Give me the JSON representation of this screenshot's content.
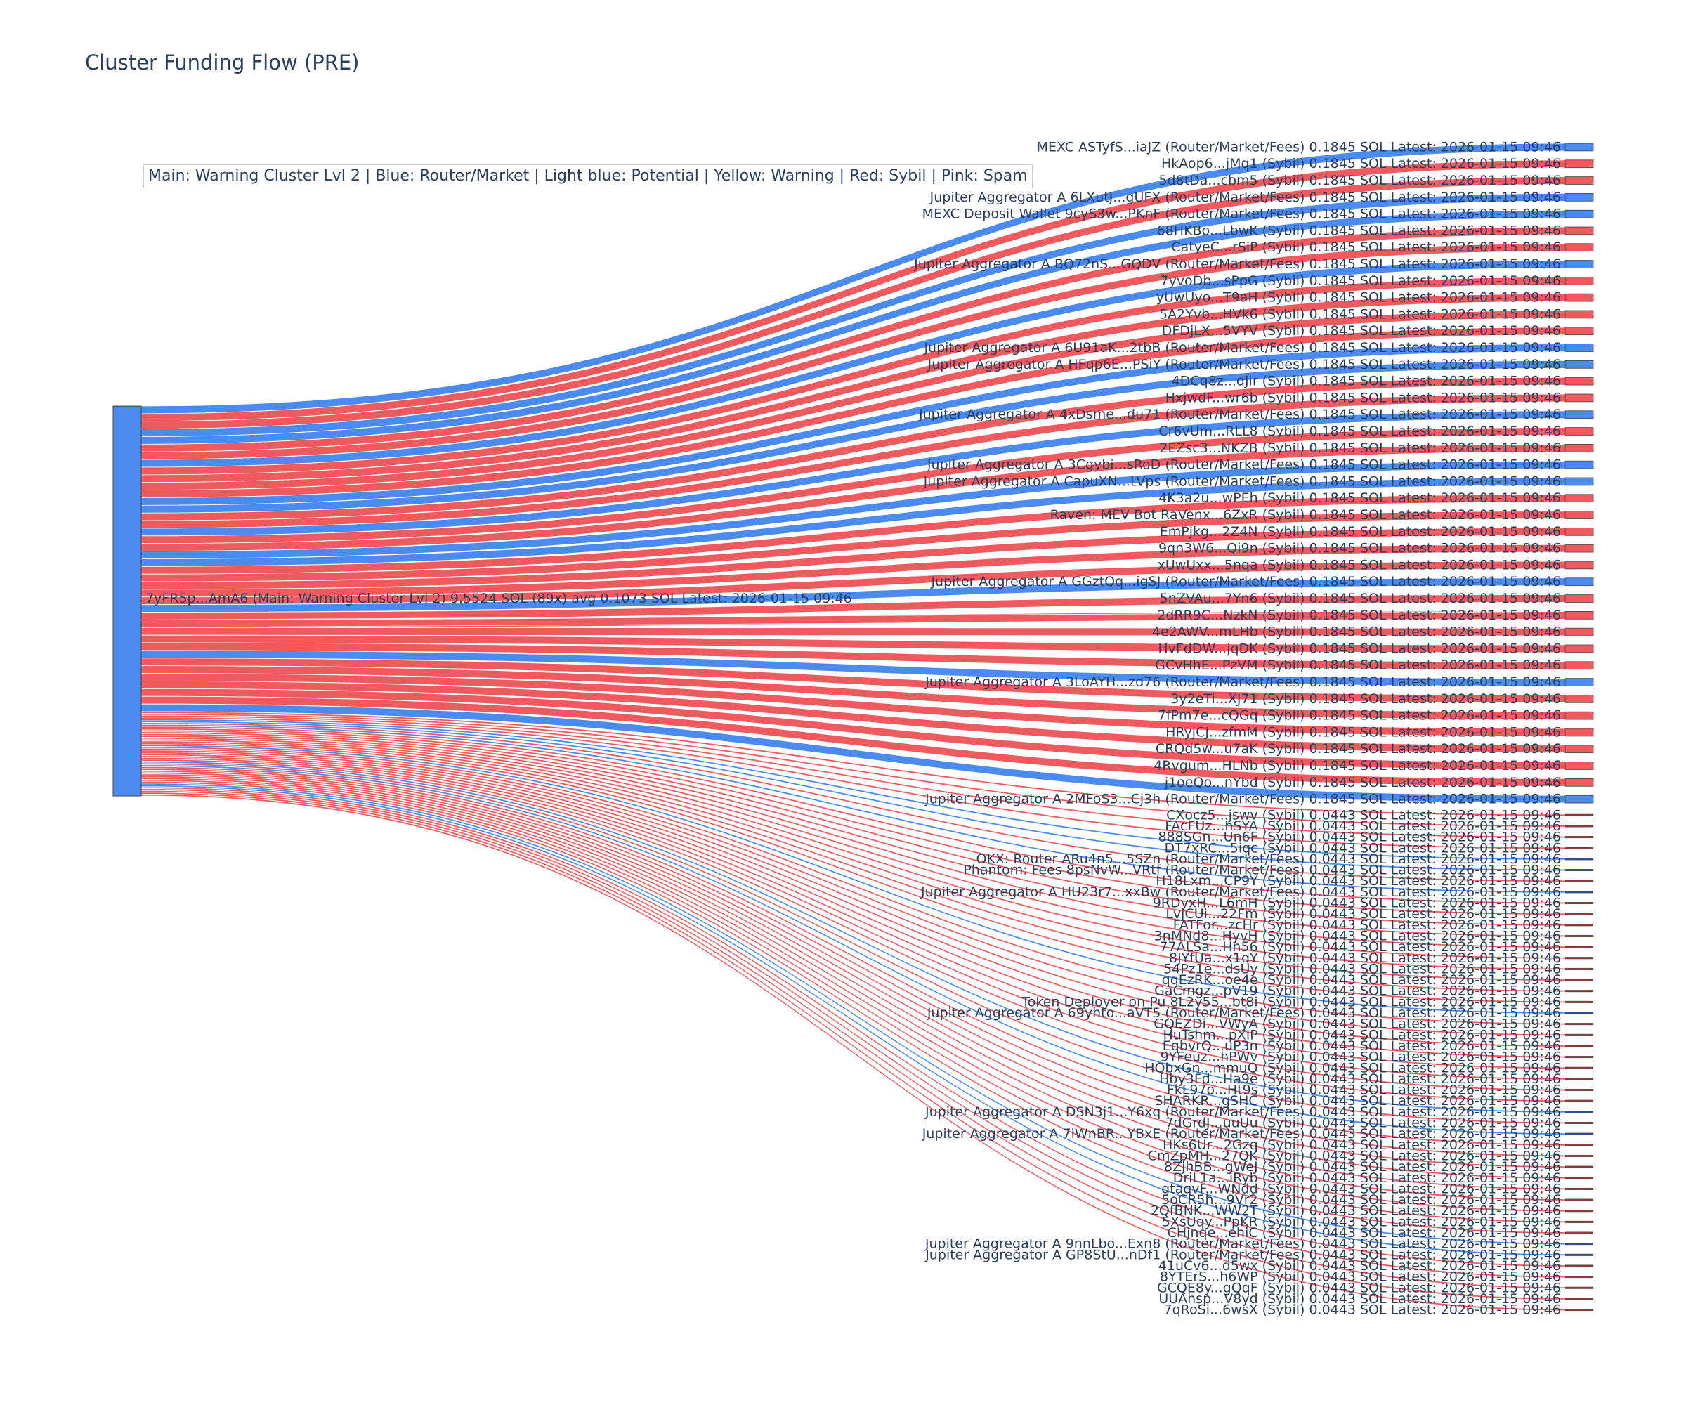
{
  "title": "Cluster Funding Flow (PRE)",
  "legend_text": "Main: Warning Cluster Lvl 2  |  Blue: Router/Market | Light blue: Potential | Yellow: Warning | Red: Sybil | Pink: Spam",
  "colors": {
    "router": "#4b8bf0",
    "sybil": "#ef5a5f",
    "source_node": "#4b8bf0",
    "small_sybil_node": "#8b3a3a",
    "small_router_node": "#2f4f8f"
  },
  "chart_data": {
    "type": "sankey",
    "source": {
      "label": "7yFR5p...AmA6 (Main: Warning Cluster Lvl 2) 9.5524 SOL (89x) avg 0.1073 SOL Latest: 2026-01-15 09:46",
      "total": 9.5524,
      "count": 89
    },
    "targets": [
      {
        "label": "MEXC ASTyfS...iaJZ (Router/Market/Fees) 0.1845 SOL Latest: 2026-01-15 09:46",
        "kind": "router",
        "value": 0.1845
      },
      {
        "label": "HkAop6...jMq1 (Sybil) 0.1845 SOL Latest: 2026-01-15 09:46",
        "kind": "sybil",
        "value": 0.1845
      },
      {
        "label": "5d8tDa...cbm5 (Sybil) 0.1845 SOL Latest: 2026-01-15 09:46",
        "kind": "sybil",
        "value": 0.1845
      },
      {
        "label": "Jupiter Aggregator A 6LXutJ...gUFX (Router/Market/Fees) 0.1845 SOL Latest: 2026-01-15 09:46",
        "kind": "router",
        "value": 0.1845
      },
      {
        "label": "MEXC Deposit Wallet 9cyS3w...PKnF (Router/Market/Fees) 0.1845 SOL Latest: 2026-01-15 09:46",
        "kind": "router",
        "value": 0.1845
      },
      {
        "label": "68HKBo...LbwK (Sybil) 0.1845 SOL Latest: 2026-01-15 09:46",
        "kind": "sybil",
        "value": 0.1845
      },
      {
        "label": "CatyeC...rSiP (Sybil) 0.1845 SOL Latest: 2026-01-15 09:46",
        "kind": "sybil",
        "value": 0.1845
      },
      {
        "label": "Jupiter Aggregator A BQ72nS...GQDV (Router/Market/Fees) 0.1845 SOL Latest: 2026-01-15 09:46",
        "kind": "router",
        "value": 0.1845
      },
      {
        "label": "7yvoDb...sPpG (Sybil) 0.1845 SOL Latest: 2026-01-15 09:46",
        "kind": "sybil",
        "value": 0.1845
      },
      {
        "label": "yUwUyo...T9aH (Sybil) 0.1845 SOL Latest: 2026-01-15 09:46",
        "kind": "sybil",
        "value": 0.1845
      },
      {
        "label": "5A2Yvb...HVk6 (Sybil) 0.1845 SOL Latest: 2026-01-15 09:46",
        "kind": "sybil",
        "value": 0.1845
      },
      {
        "label": "DFDjLX...5VYV (Sybil) 0.1845 SOL Latest: 2026-01-15 09:46",
        "kind": "sybil",
        "value": 0.1845
      },
      {
        "label": "Jupiter Aggregator A 6U91aK...2tbB (Router/Market/Fees) 0.1845 SOL Latest: 2026-01-15 09:46",
        "kind": "router",
        "value": 0.1845
      },
      {
        "label": "Jupiter Aggregator A HFqp6E...PSiY (Router/Market/Fees) 0.1845 SOL Latest: 2026-01-15 09:46",
        "kind": "router",
        "value": 0.1845
      },
      {
        "label": "4DCq8z...dJir (Sybil) 0.1845 SOL Latest: 2026-01-15 09:46",
        "kind": "sybil",
        "value": 0.1845
      },
      {
        "label": "HxjwdF...wr6b (Sybil) 0.1845 SOL Latest: 2026-01-15 09:46",
        "kind": "sybil",
        "value": 0.1845
      },
      {
        "label": "Jupiter Aggregator A 4xDsme...du71 (Router/Market/Fees) 0.1845 SOL Latest: 2026-01-15 09:46",
        "kind": "router",
        "value": 0.1845
      },
      {
        "label": "Cr6vUm...RLL8 (Sybil) 0.1845 SOL Latest: 2026-01-15 09:46",
        "kind": "sybil",
        "value": 0.1845
      },
      {
        "label": "2EZsc3...NKZB (Sybil) 0.1845 SOL Latest: 2026-01-15 09:46",
        "kind": "sybil",
        "value": 0.1845
      },
      {
        "label": "Jupiter Aggregator A 3Cgybi...sRoD (Router/Market/Fees) 0.1845 SOL Latest: 2026-01-15 09:46",
        "kind": "router",
        "value": 0.1845
      },
      {
        "label": "Jupiter Aggregator A CapuXN...LVps (Router/Market/Fees) 0.1845 SOL Latest: 2026-01-15 09:46",
        "kind": "router",
        "value": 0.1845
      },
      {
        "label": "4K3a2u...wPEh (Sybil) 0.1845 SOL Latest: 2026-01-15 09:46",
        "kind": "sybil",
        "value": 0.1845
      },
      {
        "label": "Raven: MEV Bot RaVenx...6ZxR (Sybil) 0.1845 SOL Latest: 2026-01-15 09:46",
        "kind": "sybil",
        "value": 0.1845
      },
      {
        "label": "EmPjkg...2Z4N (Sybil) 0.1845 SOL Latest: 2026-01-15 09:46",
        "kind": "sybil",
        "value": 0.1845
      },
      {
        "label": "9qn3W6...Qi9n (Sybil) 0.1845 SOL Latest: 2026-01-15 09:46",
        "kind": "sybil",
        "value": 0.1845
      },
      {
        "label": "xUwUxx...5nqa (Sybil) 0.1845 SOL Latest: 2026-01-15 09:46",
        "kind": "sybil",
        "value": 0.1845
      },
      {
        "label": "Jupiter Aggregator A GGztQq...igSJ (Router/Market/Fees) 0.1845 SOL Latest: 2026-01-15 09:46",
        "kind": "router",
        "value": 0.1845
      },
      {
        "label": "5nZVAu...7Yn6 (Sybil) 0.1845 SOL Latest: 2026-01-15 09:46",
        "kind": "sybil",
        "value": 0.1845
      },
      {
        "label": "2dRR9C...NzkN (Sybil) 0.1845 SOL Latest: 2026-01-15 09:46",
        "kind": "sybil",
        "value": 0.1845
      },
      {
        "label": "4e2AWV...mLHb (Sybil) 0.1845 SOL Latest: 2026-01-15 09:46",
        "kind": "sybil",
        "value": 0.1845
      },
      {
        "label": "HvFdDW...jqDK (Sybil) 0.1845 SOL Latest: 2026-01-15 09:46",
        "kind": "sybil",
        "value": 0.1845
      },
      {
        "label": "GCvHhE...PzVM (Sybil) 0.1845 SOL Latest: 2026-01-15 09:46",
        "kind": "sybil",
        "value": 0.1845
      },
      {
        "label": "Jupiter Aggregator A 3LoAYH...zd76 (Router/Market/Fees) 0.1845 SOL Latest: 2026-01-15 09:46",
        "kind": "router",
        "value": 0.1845
      },
      {
        "label": "3y2eTi...XJ71 (Sybil) 0.1845 SOL Latest: 2026-01-15 09:46",
        "kind": "sybil",
        "value": 0.1845
      },
      {
        "label": "7fPm7e...cQGq (Sybil) 0.1845 SOL Latest: 2026-01-15 09:46",
        "kind": "sybil",
        "value": 0.1845
      },
      {
        "label": "HRyjCJ...zfmM (Sybil) 0.1845 SOL Latest: 2026-01-15 09:46",
        "kind": "sybil",
        "value": 0.1845
      },
      {
        "label": "CRQd5w...u7aK (Sybil) 0.1845 SOL Latest: 2026-01-15 09:46",
        "kind": "sybil",
        "value": 0.1845
      },
      {
        "label": "4Rvgum...HLNb (Sybil) 0.1845 SOL Latest: 2026-01-15 09:46",
        "kind": "sybil",
        "value": 0.1845
      },
      {
        "label": "j1oeQo...nYbd (Sybil) 0.1845 SOL Latest: 2026-01-15 09:46",
        "kind": "sybil",
        "value": 0.1845
      },
      {
        "label": "Jupiter Aggregator A 2MFoS3...Cj3h (Router/Market/Fees) 0.1845 SOL Latest: 2026-01-15 09:46",
        "kind": "router",
        "value": 0.1845
      },
      {
        "label": "CXocz5...jswv (Sybil) 0.0443 SOL Latest: 2026-01-15 09:46",
        "kind": "sybil",
        "value": 0.0443
      },
      {
        "label": "FAcFUz...hSYA (Sybil) 0.0443 SOL Latest: 2026-01-15 09:46",
        "kind": "sybil",
        "value": 0.0443
      },
      {
        "label": "888SGn...Un6F (Sybil) 0.0443 SOL Latest: 2026-01-15 09:46",
        "kind": "sybil",
        "value": 0.0443
      },
      {
        "label": "DT7xRC...5iqc (Sybil) 0.0443 SOL Latest: 2026-01-15 09:46",
        "kind": "sybil",
        "value": 0.0443
      },
      {
        "label": "OKX: Router ARu4n5...5SZn (Router/Market/Fees) 0.0443 SOL Latest: 2026-01-15 09:46",
        "kind": "router",
        "value": 0.0443
      },
      {
        "label": "Phantom: Fees 8psNvW...VRtf (Router/Market/Fees) 0.0443 SOL Latest: 2026-01-15 09:46",
        "kind": "router",
        "value": 0.0443
      },
      {
        "label": "H18Lxm...CP9Y (Sybil) 0.0443 SOL Latest: 2026-01-15 09:46",
        "kind": "sybil",
        "value": 0.0443
      },
      {
        "label": "Jupiter Aggregator A HU23r7...xxBw (Router/Market/Fees) 0.0443 SOL Latest: 2026-01-15 09:46",
        "kind": "router",
        "value": 0.0443
      },
      {
        "label": "9RDyxH...L6mH (Sybil) 0.0443 SOL Latest: 2026-01-15 09:46",
        "kind": "sybil",
        "value": 0.0443
      },
      {
        "label": "LvjCUi...22Fm (Sybil) 0.0443 SOL Latest: 2026-01-15 09:46",
        "kind": "sybil",
        "value": 0.0443
      },
      {
        "label": "FATFor...zcHr (Sybil) 0.0443 SOL Latest: 2026-01-15 09:46",
        "kind": "sybil",
        "value": 0.0443
      },
      {
        "label": "3nMNd8...HyvH (Sybil) 0.0443 SOL Latest: 2026-01-15 09:46",
        "kind": "sybil",
        "value": 0.0443
      },
      {
        "label": "77ALSa...Hn56 (Sybil) 0.0443 SOL Latest: 2026-01-15 09:46",
        "kind": "sybil",
        "value": 0.0443
      },
      {
        "label": "8JYfUa...x1qY (Sybil) 0.0443 SOL Latest: 2026-01-15 09:46",
        "kind": "sybil",
        "value": 0.0443
      },
      {
        "label": "54Pz1e...dsUy (Sybil) 0.0443 SOL Latest: 2026-01-15 09:46",
        "kind": "sybil",
        "value": 0.0443
      },
      {
        "label": "qqEzRK...oe4e (Sybil) 0.0443 SOL Latest: 2026-01-15 09:46",
        "kind": "sybil",
        "value": 0.0443
      },
      {
        "label": "GaCmgz...pV19 (Sybil) 0.0443 SOL Latest: 2026-01-15 09:46",
        "kind": "sybil",
        "value": 0.0443
      },
      {
        "label": "Token Deployer on Pu 8L2y55...bt8i (Sybil) 0.0443 SOL Latest: 2026-01-15 09:46",
        "kind": "sybil",
        "value": 0.0443
      },
      {
        "label": "Jupiter Aggregator A 69yhto...aVT5 (Router/Market/Fees) 0.0443 SOL Latest: 2026-01-15 09:46",
        "kind": "router",
        "value": 0.0443
      },
      {
        "label": "GQEZDi...VWyA (Sybil) 0.0443 SOL Latest: 2026-01-15 09:46",
        "kind": "sybil",
        "value": 0.0443
      },
      {
        "label": "HuTshm...pXiP (Sybil) 0.0443 SOL Latest: 2026-01-15 09:46",
        "kind": "sybil",
        "value": 0.0443
      },
      {
        "label": "EqbvrQ...uP3n (Sybil) 0.0443 SOL Latest: 2026-01-15 09:46",
        "kind": "sybil",
        "value": 0.0443
      },
      {
        "label": "9YFeuz...hPWv (Sybil) 0.0443 SOL Latest: 2026-01-15 09:46",
        "kind": "sybil",
        "value": 0.0443
      },
      {
        "label": "HQbxGn...mmuQ (Sybil) 0.0443 SOL Latest: 2026-01-15 09:46",
        "kind": "sybil",
        "value": 0.0443
      },
      {
        "label": "Hby3Fd...Ha9e (Sybil) 0.0443 SOL Latest: 2026-01-15 09:46",
        "kind": "sybil",
        "value": 0.0443
      },
      {
        "label": "FkL97o...Ht9s (Sybil) 0.0443 SOL Latest: 2026-01-15 09:46",
        "kind": "sybil",
        "value": 0.0443
      },
      {
        "label": "SHARKR...gSHC (Sybil) 0.0443 SOL Latest: 2026-01-15 09:46",
        "kind": "sybil",
        "value": 0.0443
      },
      {
        "label": "Jupiter Aggregator A DSN3j1...Y6xq (Router/Market/Fees) 0.0443 SOL Latest: 2026-01-15 09:46",
        "kind": "router",
        "value": 0.0443
      },
      {
        "label": "7dGrdJ...uuUu (Sybil) 0.0443 SOL Latest: 2026-01-15 09:46",
        "kind": "sybil",
        "value": 0.0443
      },
      {
        "label": "Jupiter Aggregator A 7iWnBR...YBxE (Router/Market/Fees) 0.0443 SOL Latest: 2026-01-15 09:46",
        "kind": "router",
        "value": 0.0443
      },
      {
        "label": "HKs6Ur...2Gzq (Sybil) 0.0443 SOL Latest: 2026-01-15 09:46",
        "kind": "sybil",
        "value": 0.0443
      },
      {
        "label": "CmZpMH...27QK (Sybil) 0.0443 SOL Latest: 2026-01-15 09:46",
        "kind": "sybil",
        "value": 0.0443
      },
      {
        "label": "8ZjhBB...gWeJ (Sybil) 0.0443 SOL Latest: 2026-01-15 09:46",
        "kind": "sybil",
        "value": 0.0443
      },
      {
        "label": "DriL1a...iRyb (Sybil) 0.0443 SOL Latest: 2026-01-15 09:46",
        "kind": "sybil",
        "value": 0.0443
      },
      {
        "label": "gtaqvF...WNdd (Sybil) 0.0443 SOL Latest: 2026-01-15 09:46",
        "kind": "sybil",
        "value": 0.0443
      },
      {
        "label": "5oCR5h...9Vr2 (Sybil) 0.0443 SOL Latest: 2026-01-15 09:46",
        "kind": "sybil",
        "value": 0.0443
      },
      {
        "label": "2QfBNK...WW2T (Sybil) 0.0443 SOL Latest: 2026-01-15 09:46",
        "kind": "sybil",
        "value": 0.0443
      },
      {
        "label": "5XsUqy...PpKR (Sybil) 0.0443 SOL Latest: 2026-01-15 09:46",
        "kind": "sybil",
        "value": 0.0443
      },
      {
        "label": "CHjnqe...ehiC (Sybil) 0.0443 SOL Latest: 2026-01-15 09:46",
        "kind": "sybil",
        "value": 0.0443
      },
      {
        "label": "Jupiter Aggregator A 9nnLbo...Exn8 (Router/Market/Fees) 0.0443 SOL Latest: 2026-01-15 09:46",
        "kind": "router",
        "value": 0.0443
      },
      {
        "label": "Jupiter Aggregator A GP8StU...nDf1 (Router/Market/Fees) 0.0443 SOL Latest: 2026-01-15 09:46",
        "kind": "router",
        "value": 0.0443
      },
      {
        "label": "41uCv6...d5wx (Sybil) 0.0443 SOL Latest: 2026-01-15 09:46",
        "kind": "sybil",
        "value": 0.0443
      },
      {
        "label": "8YTErS...h6WP (Sybil) 0.0443 SOL Latest: 2026-01-15 09:46",
        "kind": "sybil",
        "value": 0.0443
      },
      {
        "label": "GCQE8y...gQqF (Sybil) 0.0443 SOL Latest: 2026-01-15 09:46",
        "kind": "sybil",
        "value": 0.0443
      },
      {
        "label": "UUAhsp...V8yd (Sybil) 0.0443 SOL Latest: 2026-01-15 09:46",
        "kind": "sybil",
        "value": 0.0443
      },
      {
        "label": "7qRoSi...6wsX (Sybil) 0.0443 SOL Latest: 2026-01-15 09:46",
        "kind": "sybil",
        "value": 0.0443
      }
    ]
  }
}
